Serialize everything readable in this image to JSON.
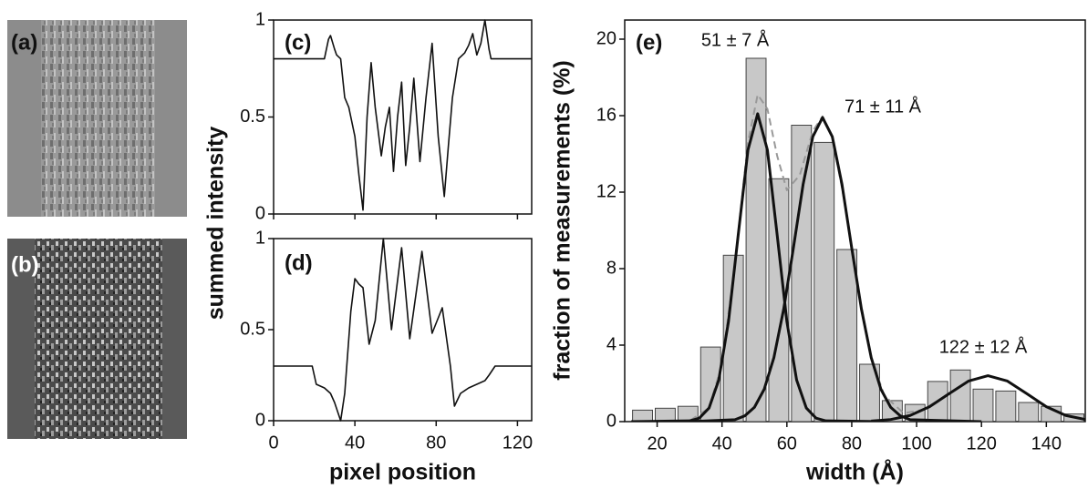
{
  "images": [
    {
      "label": "(a)"
    },
    {
      "label": "(b)"
    }
  ],
  "chart_data": [
    {
      "type": "line",
      "label": "(c)",
      "ylabel": "summed intensity",
      "x": [
        0,
        25,
        27,
        28,
        30,
        31,
        33,
        35,
        37,
        40,
        42,
        44,
        46,
        48,
        50,
        53,
        55,
        57,
        59,
        61,
        63,
        65,
        67,
        69,
        72,
        75,
        78,
        81,
        84,
        86,
        88,
        91,
        94,
        96,
        98,
        100,
        102,
        104,
        106,
        107,
        127
      ],
      "values": [
        0.8,
        0.8,
        0.9,
        0.92,
        0.85,
        0.82,
        0.8,
        0.6,
        0.55,
        0.4,
        0.2,
        0.02,
        0.5,
        0.78,
        0.55,
        0.3,
        0.45,
        0.55,
        0.22,
        0.5,
        0.68,
        0.25,
        0.45,
        0.7,
        0.27,
        0.6,
        0.88,
        0.4,
        0.09,
        0.35,
        0.6,
        0.8,
        0.83,
        0.87,
        0.93,
        0.82,
        0.88,
        1.0,
        0.85,
        0.8,
        0.8
      ],
      "color": "#111",
      "xlim": [
        0,
        127
      ],
      "ylim": [
        0,
        1
      ],
      "xticks": [
        0,
        40,
        80,
        120
      ],
      "yticks": [
        0,
        0.5,
        1
      ]
    },
    {
      "type": "line",
      "label": "(d)",
      "xlabel": "pixel position",
      "x": [
        0,
        19,
        21,
        25,
        28,
        30,
        33,
        35,
        38,
        40,
        42,
        44,
        47,
        50,
        54,
        58,
        63,
        67,
        73,
        78,
        83,
        87,
        89,
        92,
        96,
        100,
        104,
        106,
        109,
        127
      ],
      "values": [
        0.3,
        0.3,
        0.2,
        0.18,
        0.15,
        0.1,
        0,
        0.15,
        0.6,
        0.78,
        0.75,
        0.73,
        0.42,
        0.55,
        1,
        0.5,
        0.95,
        0.45,
        0.93,
        0.48,
        0.62,
        0.3,
        0.08,
        0.15,
        0.18,
        0.2,
        0.22,
        0.25,
        0.3,
        0.3
      ],
      "color": "#111",
      "xlim": [
        0,
        127
      ],
      "ylim": [
        0,
        1
      ],
      "xticks": [
        0,
        40,
        80,
        120
      ],
      "yticks": [
        0,
        0.5,
        1
      ]
    },
    {
      "type": "histogram",
      "label": "(e)",
      "xlabel": "width (Å)",
      "ylabel": "fraction of measurements (%)",
      "bins": [
        12,
        19,
        26,
        33,
        40,
        47,
        54,
        61,
        68,
        75,
        82,
        89,
        96,
        103,
        110,
        117,
        124,
        131,
        138,
        145,
        152
      ],
      "values": [
        0.6,
        0.7,
        0.8,
        3.9,
        8.7,
        19,
        12.7,
        15.5,
        14.6,
        9,
        3,
        1.1,
        0.9,
        2.1,
        2.7,
        1.7,
        1.6,
        1.0,
        0.8,
        0.4
      ],
      "color": "#c8c8c8",
      "fits": [
        {
          "x": [
            12,
            30,
            33,
            36,
            39,
            42,
            45,
            48,
            51,
            54,
            57,
            60,
            63,
            66,
            69,
            72,
            90
          ],
          "values": [
            0,
            0.04,
            0.18,
            0.71,
            2.18,
            5.23,
            9.77,
            14.2,
            16.1,
            14.2,
            9.77,
            5.23,
            2.18,
            0.71,
            0.18,
            0.04,
            0
          ],
          "color": "#111"
        },
        {
          "x": [
            30,
            44,
            47,
            50,
            53,
            56,
            59,
            62,
            65,
            68,
            71,
            74,
            77,
            80,
            83,
            86,
            89,
            92,
            95,
            98,
            120
          ],
          "values": [
            0,
            0.1,
            0.3,
            0.75,
            1.69,
            3.35,
            5.87,
            9.07,
            12.4,
            14.9,
            15.9,
            14.9,
            12.4,
            9.07,
            5.87,
            3.35,
            1.69,
            0.75,
            0.3,
            0.1,
            0
          ],
          "color": "#111"
        },
        {
          "x": [
            86,
            92,
            98,
            104,
            110,
            116,
            122,
            128,
            134,
            140,
            146,
            152
          ],
          "values": [
            0.03,
            0.11,
            0.32,
            0.78,
            1.46,
            2.12,
            2.4,
            2.12,
            1.46,
            0.78,
            0.32,
            0.11
          ],
          "color": "#111"
        },
        {
          "x": [
            12,
            30,
            36,
            40,
            44,
            48,
            51,
            54,
            57,
            60,
            64,
            68,
            71,
            74,
            78,
            82,
            86,
            90,
            96,
            102,
            110,
            116,
            122,
            128,
            134,
            140,
            146,
            152
          ],
          "values": [
            0,
            0.04,
            0.71,
            3.02,
            8.25,
            14.6,
            17.1,
            16.35,
            13.9,
            12.1,
            12.9,
            15.2,
            15.96,
            14.9,
            11.3,
            6.88,
            3.38,
            1.37,
            0.44,
            0.62,
            1.46,
            2.12,
            2.4,
            2.12,
            1.46,
            0.78,
            0.32,
            0.11
          ],
          "color": "#999",
          "dash": true
        }
      ],
      "annotations": [
        "51 ± 7 Å",
        "71 ± 11 Å",
        "122 ± 12 Å"
      ],
      "xlim": [
        10,
        152
      ],
      "ylim": [
        0,
        21
      ],
      "xticks": [
        20,
        40,
        60,
        80,
        100,
        120,
        140
      ],
      "yticks": [
        0,
        4,
        8,
        12,
        16,
        20
      ]
    }
  ]
}
